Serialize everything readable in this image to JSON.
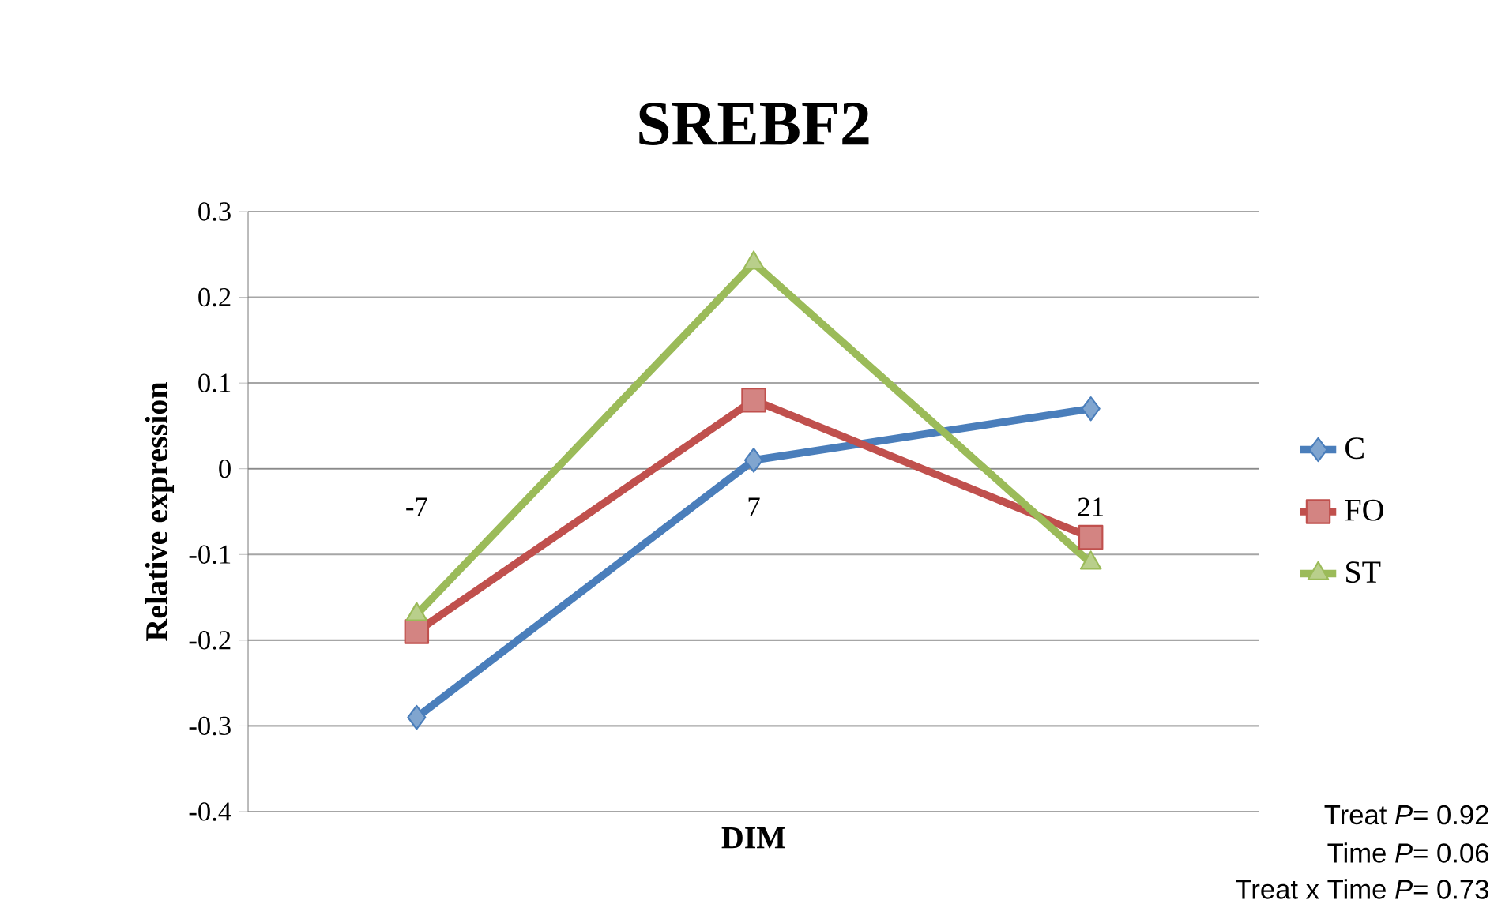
{
  "chart_data": {
    "type": "line",
    "title": "SREBF2",
    "xlabel": "DIM",
    "ylabel": "Relative expression",
    "categories": [
      "-7",
      "7",
      "21"
    ],
    "series": [
      {
        "name": "C",
        "color": "#4a7ebb",
        "marker": "diamond",
        "values": [
          -0.29,
          0.01,
          0.07
        ]
      },
      {
        "name": "FO",
        "color": "#c0504d",
        "marker": "square",
        "values": [
          -0.19,
          0.08,
          -0.08
        ]
      },
      {
        "name": "ST",
        "color": "#9bbb59",
        "marker": "triangle",
        "values": [
          -0.17,
          0.24,
          -0.11
        ]
      }
    ],
    "ylim": [
      -0.4,
      0.3
    ],
    "yticks": [
      -0.4,
      -0.3,
      -0.2,
      -0.1,
      0,
      0.1,
      0.2,
      0.3
    ],
    "grid": "y",
    "legend": "right",
    "line_style": "solid",
    "annotations": [
      "Treat *P*= 0.92",
      "Time *P*= 0.06",
      "Treat x Time *P*= 0.73"
    ]
  }
}
